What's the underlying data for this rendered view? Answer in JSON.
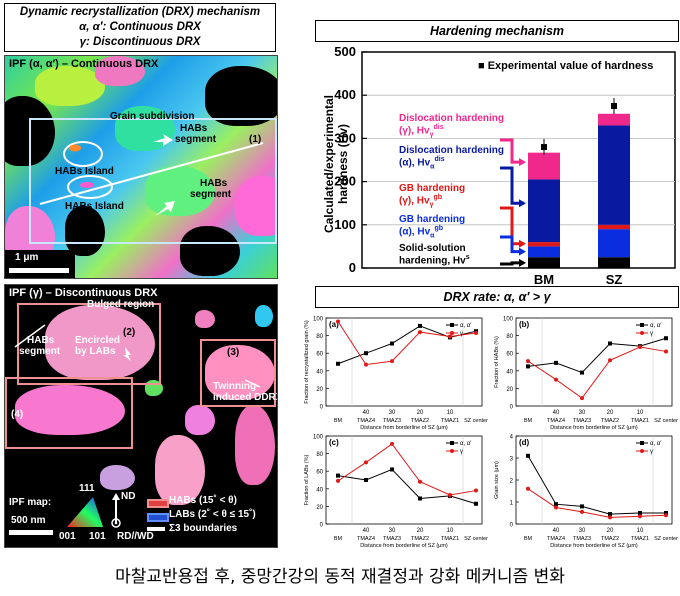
{
  "left_top_title": {
    "line1": "Dynamic recrystallization (DRX) mechanism",
    "line2": "α, α′: Continuous DRX",
    "line3": "γ: Discontinuous DRX"
  },
  "ipf_alpha": {
    "title": "IPF (α, α′) – Continuous DRX",
    "grain_subdivision": "Grain subdivision",
    "habs_segment_a": "HABs",
    "habs_segment_b": "segment",
    "habs_island_1": "HABs Island",
    "habs_island_2": "HABs Island",
    "habs_segment2_a": "HABs",
    "habs_segment2_b": "segment",
    "marker": "(1)",
    "scale": "1 μm"
  },
  "ipf_gamma": {
    "title": "IPF (γ) – Discontinuous DRX",
    "bulged": "Bulged region",
    "habs_a": "HABs",
    "habs_b": "segment",
    "encircled_a": "Encircled",
    "encircled_b": "by LABs",
    "m2": "(2)",
    "m3": "(3)",
    "m4": "(4)",
    "twin_a": "Twinning-",
    "twin_b": "induced DDRX",
    "legend_ipf": "IPF map:",
    "legend_111": "111",
    "legend_001": "001",
    "legend_101": "101",
    "legend_nd": "ND",
    "legend_rd": "RD//WD",
    "legend_habs": "HABs (15˚ < θ)",
    "legend_labs": "LABs (2˚ < θ ≤ 15˚)",
    "legend_s3": "Σ3 boundaries",
    "scale": "500 nm"
  },
  "hardening": {
    "title": "Hardening mechanism",
    "ylabel1": "Calculated/experimental",
    "ylabel2": "hardness (Hv)",
    "legend": "Experimental value of hardness",
    "label_disl_g_1": "Dislocation hardening",
    "label_disl_g_2": "(γ), Hv",
    "label_disl_a_1": "Dislocation hardening",
    "label_disl_a_2": "(α), Hv",
    "label_gb_g_1": "GB hardening",
    "label_gb_g_2": "(γ), Hv",
    "label_gb_a_1": "GB hardening",
    "label_gb_a_2": "(α), Hv",
    "label_ss_1": "Solid-solution",
    "label_ss_2": "hardening, Hv",
    "sup_dis": "dis",
    "sup_gb": "gb",
    "sub_g": "γ",
    "sub_a": "α",
    "sup_s": "s"
  },
  "drx_rate": {
    "title": "DRX rate: α, α′ > γ",
    "xlabel": "Distance from borderline of SZ (μm)",
    "series_a": "α, α′",
    "series_g": "γ"
  },
  "caption": "마찰교반용접 후, 중망간강의 동적 재결정과 강화 메커니즘 변화",
  "colors": {
    "solid_solution": "#000000",
    "gb_alpha": "#0a2de0",
    "gb_gamma": "#e01818",
    "disl_alpha": "#0a1aa0",
    "disl_gamma": "#f0288c",
    "series_alpha": "#000000",
    "series_gamma": "#e01818"
  },
  "chart_data": [
    {
      "type": "bar",
      "title": "Hardening mechanism",
      "categories": [
        "BM",
        "SZ"
      ],
      "ylim": [
        0,
        500
      ],
      "yticks": [
        0,
        100,
        200,
        300,
        400,
        500
      ],
      "stacked": true,
      "series": [
        {
          "name": "Solid-solution hardening, Hvs",
          "values": [
            25,
            25
          ]
        },
        {
          "name": "GB hardening (α), Hvgbα",
          "values": [
            25,
            65
          ]
        },
        {
          "name": "GB hardening (γ), Hvgbγ",
          "values": [
            10,
            10
          ]
        },
        {
          "name": "Dislocation hardening (α), Hvdisα",
          "values": [
            145,
            230
          ]
        },
        {
          "name": "Dislocation hardening (γ), Hvdisγ",
          "values": [
            62,
            27
          ]
        }
      ],
      "experimental": {
        "name": "Experimental value of hardness",
        "values": [
          280,
          375
        ]
      }
    },
    {
      "type": "line",
      "panel": "(a)",
      "ylabel": "Fraction of recrystallized grain (%)",
      "xlabel": "Distance from borderline of SZ (μm)",
      "categories": [
        "BM",
        "TMAZ4",
        "TMAZ3",
        "TMAZ2",
        "TMAZ1",
        "SZ center"
      ],
      "x_ticks": [
        "40",
        "30",
        "20",
        "10"
      ],
      "ylim": [
        0,
        100
      ],
      "yticks": [
        0,
        20,
        40,
        60,
        80,
        100
      ],
      "series": [
        {
          "name": "α, α′",
          "values": [
            48,
            60,
            71,
            91,
            78,
            85
          ]
        },
        {
          "name": "γ",
          "values": [
            96,
            47,
            51,
            84,
            79,
            83
          ]
        }
      ]
    },
    {
      "type": "line",
      "panel": "(b)",
      "ylabel": "Fraction of HABs (%)",
      "xlabel": "Distance from borderline of SZ (μm)",
      "categories": [
        "BM",
        "TMAZ4",
        "TMAZ3",
        "TMAZ2",
        "TMAZ1",
        "SZ center"
      ],
      "x_ticks": [
        "40",
        "30",
        "20",
        "10"
      ],
      "ylim": [
        0,
        100
      ],
      "yticks": [
        0,
        20,
        40,
        60,
        80,
        100
      ],
      "series": [
        {
          "name": "α, α′",
          "values": [
            45,
            49,
            38,
            71,
            68,
            77
          ]
        },
        {
          "name": "γ",
          "values": [
            51,
            30,
            9,
            52,
            67,
            62
          ]
        }
      ]
    },
    {
      "type": "line",
      "panel": "(c)",
      "ylabel": "Fraction of LABs (%)",
      "xlabel": "Distance from borderline of SZ (μm)",
      "categories": [
        "BM",
        "TMAZ4",
        "TMAZ3",
        "TMAZ2",
        "TMAZ1",
        "SZ center"
      ],
      "x_ticks": [
        "40",
        "30",
        "20",
        "10"
      ],
      "ylim": [
        0,
        100
      ],
      "yticks": [
        0,
        20,
        40,
        60,
        80,
        100
      ],
      "series": [
        {
          "name": "α, α′",
          "values": [
            55,
            50,
            62,
            29,
            32,
            23
          ]
        },
        {
          "name": "γ",
          "values": [
            49,
            70,
            91,
            48,
            33,
            38
          ]
        }
      ]
    },
    {
      "type": "line",
      "panel": "(d)",
      "ylabel": "Grain size (μm)",
      "xlabel": "Distance from borderline of SZ (μm)",
      "categories": [
        "BM",
        "TMAZ4",
        "TMAZ3",
        "TMAZ2",
        "TMAZ1",
        "SZ center"
      ],
      "x_ticks": [
        "40",
        "30",
        "20",
        "10"
      ],
      "ylim": [
        0,
        4
      ],
      "yticks": [
        0,
        1,
        2,
        3,
        4
      ],
      "series": [
        {
          "name": "α, α′",
          "values": [
            3.1,
            0.9,
            0.8,
            0.45,
            0.5,
            0.5
          ]
        },
        {
          "name": "γ",
          "values": [
            1.6,
            0.75,
            0.55,
            0.3,
            0.35,
            0.4
          ]
        }
      ]
    }
  ]
}
